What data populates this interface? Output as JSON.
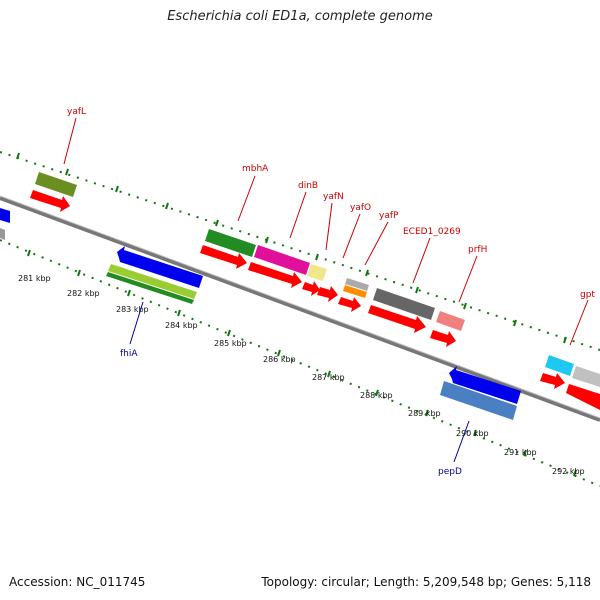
{
  "title": "Escherichia coli ED1a, complete genome",
  "footer": {
    "accession": "Accession: NC_011745",
    "topology": "Topology: circular; Length: 5,209,548 bp; Genes: 5,118"
  },
  "colors": {
    "gene_label_forward": "#cc0000",
    "gene_label_reverse": "#000099",
    "cds_arrow": "#ff0000",
    "backbone": "#888888",
    "gc_dots": "#117711"
  },
  "diagram": {
    "kbp_labels": [
      "281 kbp",
      "282 kbp",
      "283 kbp",
      "284 kbp",
      "285 kbp",
      "286 kbp",
      "287 kbp",
      "288 kbp",
      "289 kbp",
      "290 kbp",
      "291 kbp",
      "292 kbp"
    ],
    "gene_labels": [
      {
        "name": "yafL",
        "strand": "forward"
      },
      {
        "name": "mbhA",
        "strand": "forward"
      },
      {
        "name": "dinB",
        "strand": "forward"
      },
      {
        "name": "yafN",
        "strand": "forward"
      },
      {
        "name": "yafO",
        "strand": "forward"
      },
      {
        "name": "yafP",
        "strand": "forward"
      },
      {
        "name": "ECED1_0269",
        "strand": "forward"
      },
      {
        "name": "prfH",
        "strand": "forward"
      },
      {
        "name": "gpt",
        "strand": "forward"
      },
      {
        "name": "fhiA",
        "strand": "reverse"
      },
      {
        "name": "pepD",
        "strand": "reverse"
      }
    ],
    "features": [
      {
        "kind": "gene",
        "color": "#6b8e23"
      },
      {
        "kind": "cds",
        "color": "#ff0000"
      },
      {
        "kind": "gene",
        "color": "#228b22"
      },
      {
        "kind": "cds",
        "color": "#ff0000"
      },
      {
        "kind": "gene",
        "color": "#e0109a"
      },
      {
        "kind": "cds",
        "color": "#ff0000"
      },
      {
        "kind": "gene",
        "color": "#f0e68c"
      },
      {
        "kind": "cds",
        "color": "#ff0000"
      },
      {
        "kind": "gene",
        "color": "#ff8c00"
      },
      {
        "kind": "gene",
        "color": "#aaaaaa"
      },
      {
        "kind": "cds",
        "color": "#ff0000"
      },
      {
        "kind": "gene",
        "color": "#666666"
      },
      {
        "kind": "cds",
        "color": "#ff0000"
      },
      {
        "kind": "gene",
        "color": "#f08080"
      },
      {
        "kind": "cds",
        "color": "#ff0000"
      },
      {
        "kind": "gene",
        "color": "#1ec8f0"
      },
      {
        "kind": "cds",
        "color": "#ff0000"
      },
      {
        "kind": "gene",
        "color": "#c0c0c0"
      },
      {
        "kind": "cds",
        "color": "#ff0000"
      },
      {
        "kind": "gene",
        "color": "#0000ee"
      },
      {
        "kind": "gene",
        "color": "#9acd32"
      },
      {
        "kind": "gene",
        "color": "#228b22"
      },
      {
        "kind": "gene",
        "color": "#0000ee"
      },
      {
        "kind": "gene",
        "color": "#4a7fc1"
      },
      {
        "kind": "gene",
        "color": "#0000ee"
      },
      {
        "kind": "gene",
        "color": "#888888"
      }
    ]
  }
}
